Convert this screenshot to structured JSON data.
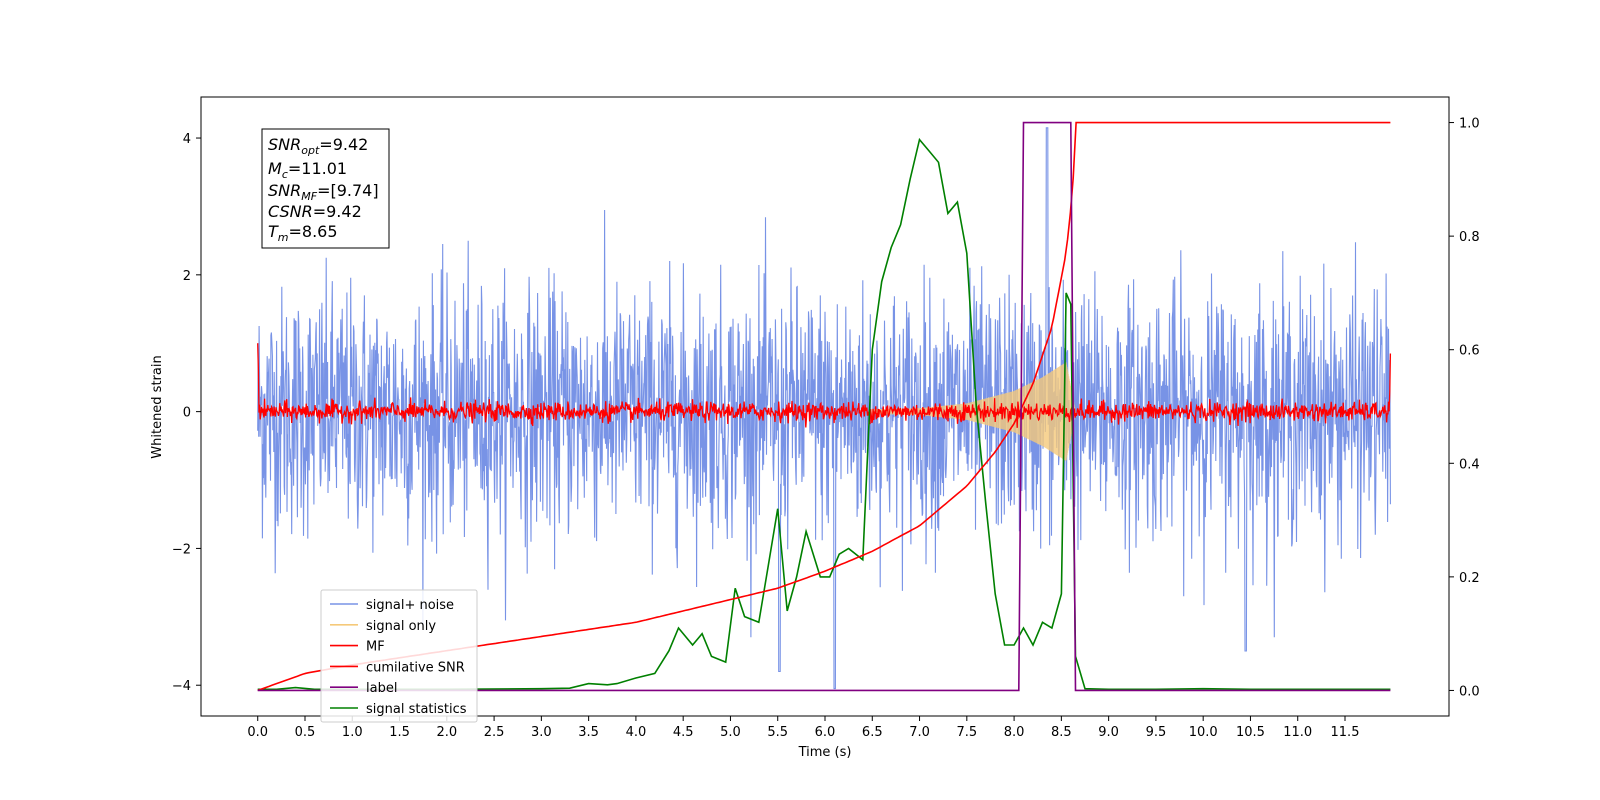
{
  "chart_data": {
    "type": "line",
    "xlabel": "Time (s)",
    "ylabel": "Whitened strain",
    "x_ticks": [
      "0.0",
      "0.5",
      "1.0",
      "1.5",
      "2.0",
      "2.5",
      "3.0",
      "3.5",
      "4.0",
      "4.5",
      "5.0",
      "5.5",
      "6.0",
      "6.5",
      "7.0",
      "7.5",
      "8.0",
      "8.5",
      "9.0",
      "9.5",
      "10.0",
      "10.5",
      "11.0",
      "11.5"
    ],
    "y_left_ticks": [
      "−4",
      "−2",
      "0",
      "2",
      "4"
    ],
    "y_right_ticks": [
      "0.0",
      "0.2",
      "0.4",
      "0.6",
      "0.8",
      "1.0"
    ],
    "xlim": [
      -0.6,
      12.6
    ],
    "ylim_left": [
      -4.45,
      4.6
    ],
    "ylim_right": [
      -0.045,
      1.045
    ],
    "annotation": {
      "snr_opt": {
        "sym": "SNR",
        "sub": "opt",
        "val": "=9.42"
      },
      "mc": {
        "sym": "M",
        "sub": "c",
        "val": "=11.01"
      },
      "snr_mf": {
        "sym": "SNR",
        "sub": "MF",
        "val": "=[9.74]"
      },
      "csnr": {
        "sym": "CSNR",
        "sub": "",
        "val": "=9.42"
      },
      "tm": {
        "sym": "T",
        "sub": "m",
        "val": "=8.65"
      }
    },
    "series": [
      {
        "name": "signal+ noise",
        "color": "#7893e6",
        "axis": "left",
        "description_kind": "noise",
        "amplitude_std": 0.9,
        "x_range": [
          0.0,
          11.98
        ]
      },
      {
        "name": "signal only",
        "color": "#f5c97a",
        "axis": "left",
        "description_kind": "chirp",
        "envelope": [
          [
            0.0,
            0.0
          ],
          [
            6.0,
            0.02
          ],
          [
            7.0,
            0.05
          ],
          [
            7.5,
            0.12
          ],
          [
            8.0,
            0.3
          ],
          [
            8.3,
            0.5
          ],
          [
            8.55,
            0.72
          ],
          [
            8.65,
            0.0
          ]
        ]
      },
      {
        "name": "MF",
        "color": "#ff0000",
        "axis": "left",
        "description_kind": "mf_noise",
        "amplitude_std": 0.07,
        "x_range": [
          0.0,
          11.98
        ]
      },
      {
        "name": "cumilative SNR",
        "color": "#ff0000",
        "axis": "right",
        "description_kind": "curve",
        "points": [
          [
            0.0,
            0.0
          ],
          [
            0.5,
            0.03
          ],
          [
            1.0,
            0.045
          ],
          [
            2.0,
            0.07
          ],
          [
            3.0,
            0.095
          ],
          [
            4.0,
            0.12
          ],
          [
            5.0,
            0.16
          ],
          [
            5.5,
            0.18
          ],
          [
            6.0,
            0.21
          ],
          [
            6.5,
            0.245
          ],
          [
            7.0,
            0.29
          ],
          [
            7.5,
            0.36
          ],
          [
            7.8,
            0.42
          ],
          [
            8.0,
            0.47
          ],
          [
            8.2,
            0.54
          ],
          [
            8.4,
            0.64
          ],
          [
            8.55,
            0.77
          ],
          [
            8.62,
            0.88
          ],
          [
            8.65,
            1.0
          ],
          [
            11.98,
            1.0
          ]
        ]
      },
      {
        "name": "label",
        "color": "#800080",
        "axis": "right",
        "description_kind": "step",
        "points": [
          [
            0.0,
            0.0
          ],
          [
            8.05,
            0.0
          ],
          [
            8.1,
            1.0
          ],
          [
            8.6,
            1.0
          ],
          [
            8.65,
            0.0
          ],
          [
            11.98,
            0.0
          ]
        ]
      },
      {
        "name": "signal statistics",
        "color": "#008000",
        "axis": "right",
        "description_kind": "curve",
        "points": [
          [
            0.0,
            0.002
          ],
          [
            0.2,
            0.002
          ],
          [
            0.4,
            0.005
          ],
          [
            0.6,
            0.002
          ],
          [
            1.0,
            0.002
          ],
          [
            2.0,
            0.002
          ],
          [
            3.0,
            0.003
          ],
          [
            3.3,
            0.004
          ],
          [
            3.5,
            0.012
          ],
          [
            3.7,
            0.01
          ],
          [
            3.8,
            0.012
          ],
          [
            4.0,
            0.022
          ],
          [
            4.2,
            0.03
          ],
          [
            4.35,
            0.07
          ],
          [
            4.45,
            0.11
          ],
          [
            4.6,
            0.08
          ],
          [
            4.7,
            0.1
          ],
          [
            4.8,
            0.06
          ],
          [
            4.95,
            0.05
          ],
          [
            5.05,
            0.18
          ],
          [
            5.15,
            0.13
          ],
          [
            5.3,
            0.12
          ],
          [
            5.4,
            0.22
          ],
          [
            5.5,
            0.32
          ],
          [
            5.6,
            0.14
          ],
          [
            5.7,
            0.2
          ],
          [
            5.8,
            0.28
          ],
          [
            5.95,
            0.2
          ],
          [
            6.05,
            0.2
          ],
          [
            6.15,
            0.24
          ],
          [
            6.25,
            0.25
          ],
          [
            6.4,
            0.23
          ],
          [
            6.5,
            0.6
          ],
          [
            6.6,
            0.72
          ],
          [
            6.7,
            0.78
          ],
          [
            6.8,
            0.82
          ],
          [
            6.9,
            0.9
          ],
          [
            7.0,
            0.97
          ],
          [
            7.1,
            0.95
          ],
          [
            7.2,
            0.93
          ],
          [
            7.3,
            0.84
          ],
          [
            7.4,
            0.86
          ],
          [
            7.5,
            0.77
          ],
          [
            7.6,
            0.5
          ],
          [
            7.7,
            0.33
          ],
          [
            7.8,
            0.17
          ],
          [
            7.9,
            0.08
          ],
          [
            8.0,
            0.08
          ],
          [
            8.1,
            0.11
          ],
          [
            8.2,
            0.08
          ],
          [
            8.3,
            0.12
          ],
          [
            8.4,
            0.11
          ],
          [
            8.5,
            0.17
          ],
          [
            8.55,
            0.7
          ],
          [
            8.6,
            0.68
          ],
          [
            8.65,
            0.06
          ],
          [
            8.75,
            0.003
          ],
          [
            9.0,
            0.002
          ],
          [
            9.5,
            0.002
          ],
          [
            10.0,
            0.003
          ],
          [
            10.5,
            0.002
          ],
          [
            11.0,
            0.002
          ],
          [
            11.5,
            0.002
          ],
          [
            11.98,
            0.002
          ]
        ]
      }
    ],
    "legend": {
      "position": "lower-left"
    }
  }
}
